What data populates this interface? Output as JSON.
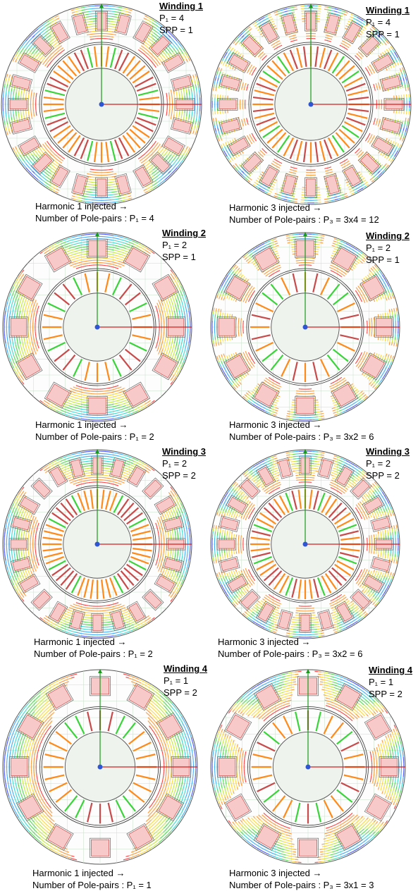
{
  "panels": [
    {
      "winding": "Winding 1",
      "p_line": "P₁ = 4",
      "spp_line": "SPP = 1",
      "caption_1": "Harmonic 1 injected →",
      "caption_2": "Number of Pole-pairs : P₁ = 4",
      "harmonic": 1,
      "pole_pairs": 4,
      "slots": 24
    },
    {
      "winding": "Winding 1",
      "p_line": "P₁ = 4",
      "spp_line": "SPP = 1",
      "caption_1": "Harmonic 3 injected →",
      "caption_2": "Number of Pole-pairs : P₃ = 3x4 = 12",
      "harmonic": 3,
      "pole_pairs": 12,
      "slots": 24
    },
    {
      "winding": "Winding 2",
      "p_line": "P₁ = 2",
      "spp_line": "SPP = 1",
      "caption_1": "Harmonic 1 injected →",
      "caption_2": "Number of Pole-pairs : P₁ = 2",
      "harmonic": 1,
      "pole_pairs": 2,
      "slots": 12
    },
    {
      "winding": "Winding 2",
      "p_line": "P₁ = 2",
      "spp_line": "SPP = 1",
      "caption_1": "Harmonic 3 injected →",
      "caption_2": "Number of Pole-pairs : P₃ = 3x2 = 6",
      "harmonic": 3,
      "pole_pairs": 6,
      "slots": 12
    },
    {
      "winding": "Winding 3",
      "p_line": "P₁ = 2",
      "spp_line": "SPP = 2",
      "caption_1": "Harmonic 1 injected →",
      "caption_2": "Number of Pole-pairs : P₁ = 2",
      "harmonic": 1,
      "pole_pairs": 2,
      "slots": 24
    },
    {
      "winding": "Winding 3",
      "p_line": "P₁ = 2",
      "spp_line": "SPP = 2",
      "caption_1": "Harmonic 3 injected →",
      "caption_2": "Number of Pole-pairs : P₃ = 3x2 = 6",
      "harmonic": 3,
      "pole_pairs": 6,
      "slots": 24
    },
    {
      "winding": "Winding 4",
      "p_line": "P₁ = 1",
      "spp_line": "SPP = 2",
      "caption_1": "Harmonic 1 injected →",
      "caption_2": "Number of Pole-pairs : P₁ = 1",
      "harmonic": 1,
      "pole_pairs": 1,
      "slots": 12
    },
    {
      "winding": "Winding 4",
      "p_line": "P₁ = 1",
      "spp_line": "SPP = 2",
      "caption_1": "Harmonic 3 injected →",
      "caption_2": "Number of Pole-pairs : P₃ = 3x1 = 3",
      "harmonic": 3,
      "pole_pairs": 3,
      "slots": 12
    }
  ],
  "colors": {
    "field_ramp": [
      "#2b3cff",
      "#1fa0ff",
      "#19d6c8",
      "#3ad43a",
      "#b8e81a",
      "#ffd21a",
      "#ff8a1a",
      "#ff1f1f"
    ],
    "stator_fill": "#e8e8e8",
    "coil_fill": "#f7c9c9",
    "coil_stroke": "#c84a4a",
    "x_axis": "#d81e1e",
    "y_axis": "#1a9a1a",
    "center_dot": "#2f55d4",
    "grid": "#c9dfc9"
  }
}
